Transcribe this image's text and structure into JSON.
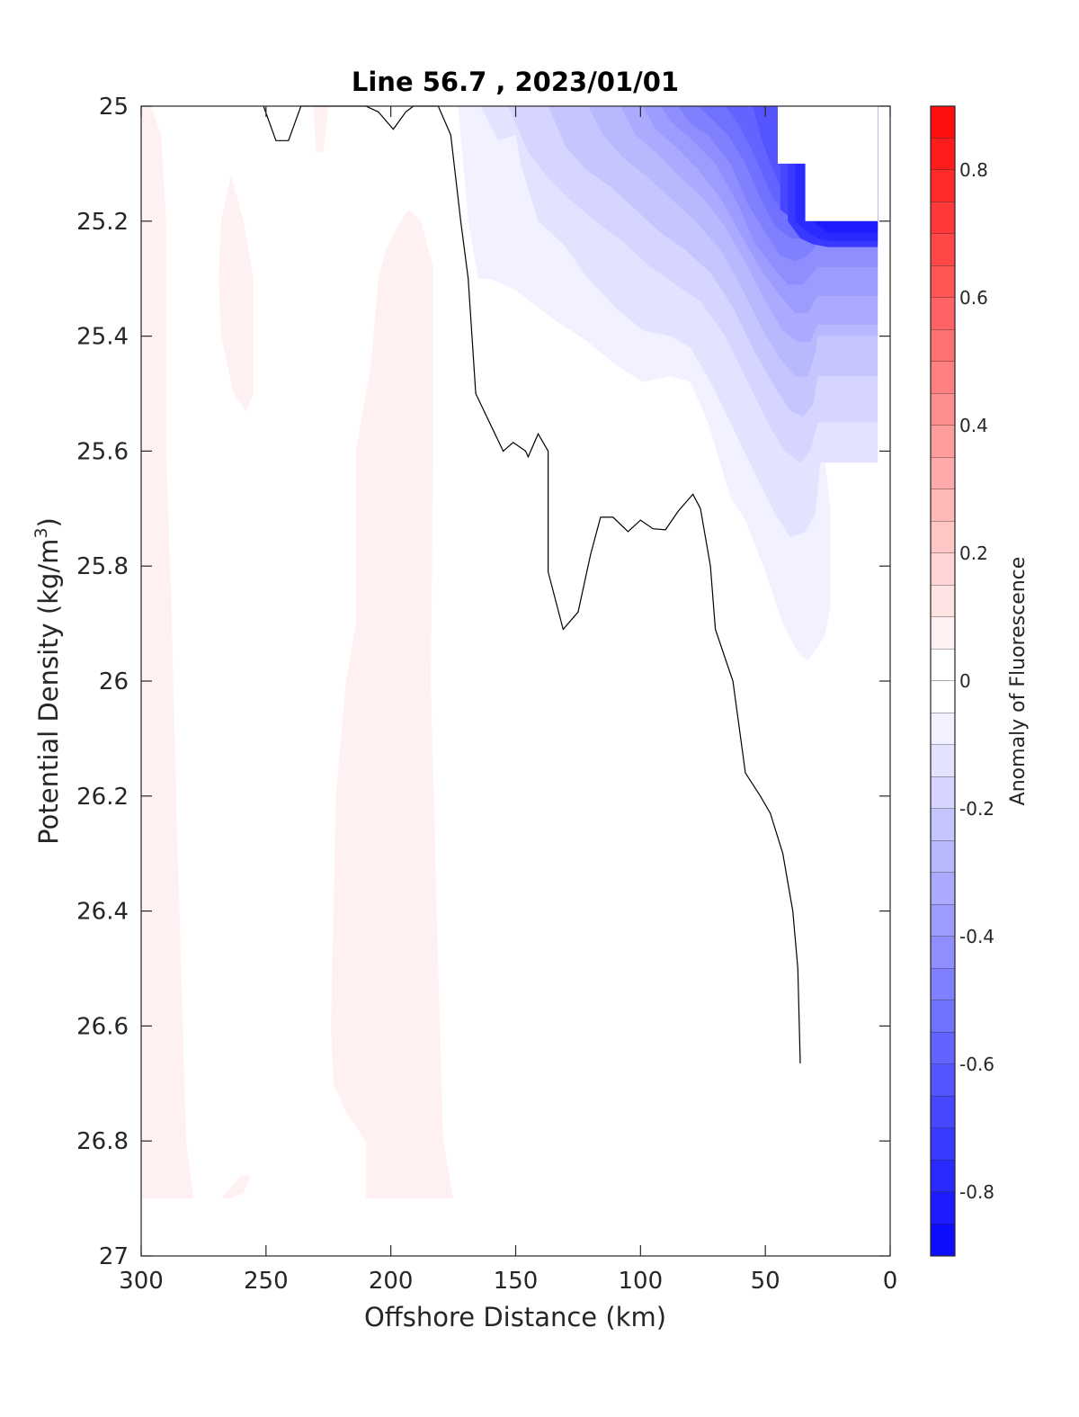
{
  "chart_data": {
    "type": "contour",
    "title": "Line 56.7 , 2023/01/01",
    "xlabel": "Offshore Distance (km)",
    "ylabel_main": "Potential Density (kg/m",
    "ylabel_sup": "3",
    "ylabel_close": ")",
    "xlim": [
      300,
      0
    ],
    "ylim": [
      25,
      27
    ],
    "x_ticks": [
      300,
      250,
      200,
      150,
      100,
      50,
      0
    ],
    "x_tick_labels": [
      "300",
      "250",
      "200",
      "150",
      "100",
      "50",
      "0"
    ],
    "y_ticks": [
      25,
      25.2,
      25.4,
      25.6,
      25.8,
      26,
      26.2,
      26.4,
      26.6,
      26.8,
      27
    ],
    "y_tick_labels": [
      "25",
      "25.2",
      "25.4",
      "25.6",
      "25.8",
      "26",
      "26.2",
      "26.4",
      "26.6",
      "26.8",
      "27"
    ],
    "colorbar": {
      "label": "Anomaly of Fluorescence",
      "range": [
        -0.9,
        0.9
      ],
      "step": 0.05,
      "ticks": [
        0.8,
        0.6,
        0.4,
        0.2,
        0,
        -0.2,
        -0.4,
        -0.6,
        -0.8
      ],
      "tick_labels": [
        "0.8",
        "0.6",
        "0.4",
        "0.2",
        "0",
        "-0.2",
        "-0.4",
        "-0.6",
        "-0.8"
      ],
      "neg_color": "#0000ff",
      "pos_color": "#ff0000"
    },
    "zero_contour": [
      [
        251,
        25.0
      ],
      [
        246,
        25.06
      ],
      [
        241,
        25.06
      ],
      [
        236,
        25.0
      ],
      [
        210,
        25.0
      ],
      [
        205,
        25.01
      ],
      [
        199,
        25.04
      ],
      [
        194,
        25.01
      ],
      [
        191,
        25.0
      ],
      [
        181,
        25.0
      ],
      [
        176,
        25.05
      ],
      [
        172,
        25.2
      ],
      [
        169,
        25.3
      ],
      [
        166,
        25.5
      ],
      [
        155,
        25.6
      ],
      [
        151,
        25.585
      ],
      [
        146,
        25.6
      ],
      [
        145,
        25.61
      ],
      [
        141,
        25.57
      ],
      [
        137,
        25.6
      ],
      [
        137,
        25.81
      ],
      [
        131,
        25.91
      ],
      [
        125,
        25.88
      ],
      [
        120,
        25.78
      ],
      [
        116,
        25.715
      ],
      [
        111,
        25.715
      ],
      [
        105,
        25.74
      ],
      [
        100,
        25.72
      ],
      [
        95,
        25.735
      ],
      [
        90,
        25.737
      ],
      [
        85,
        25.705
      ],
      [
        79,
        25.675
      ],
      [
        76,
        25.7
      ],
      [
        72,
        25.8
      ],
      [
        70,
        25.91
      ],
      [
        63,
        26.0
      ],
      [
        58,
        26.16
      ],
      [
        52,
        26.2
      ],
      [
        48,
        26.23
      ],
      [
        43,
        26.3
      ],
      [
        39,
        26.4
      ],
      [
        37,
        26.5
      ],
      [
        36,
        26.665
      ]
    ],
    "positive_regions": [
      {
        "level": 0.05,
        "points": [
          [
            296,
            25.0
          ],
          [
            292,
            25.05
          ],
          [
            290,
            25.2
          ],
          [
            290,
            25.6
          ],
          [
            288,
            25.85
          ],
          [
            286,
            26.2
          ],
          [
            284,
            26.5
          ],
          [
            282,
            26.8
          ],
          [
            279,
            26.9
          ],
          [
            300,
            26.9
          ],
          [
            300,
            25.0
          ]
        ]
      },
      {
        "level": 0.05,
        "points": [
          [
            264,
            25.12
          ],
          [
            259,
            25.2
          ],
          [
            255,
            25.3
          ],
          [
            255,
            25.5
          ],
          [
            258,
            25.53
          ],
          [
            263,
            25.5
          ],
          [
            268,
            25.4
          ],
          [
            269,
            25.3
          ],
          [
            268,
            25.2
          ]
        ]
      },
      {
        "level": 0.05,
        "points": [
          [
            264,
            26.9
          ],
          [
            259,
            26.89
          ],
          [
            256,
            26.86
          ],
          [
            260,
            26.86
          ],
          [
            268,
            26.9
          ]
        ]
      },
      {
        "level": 0.05,
        "points": [
          [
            231,
            25.0
          ],
          [
            225,
            25.0
          ],
          [
            227,
            25.08
          ],
          [
            230,
            25.08
          ]
        ]
      },
      {
        "level": 0.05,
        "points": [
          [
            193,
            25.18
          ],
          [
            188,
            25.2
          ],
          [
            183,
            25.28
          ],
          [
            183,
            25.6
          ],
          [
            184,
            26.0
          ],
          [
            181,
            26.5
          ],
          [
            179,
            26.8
          ],
          [
            175,
            26.9
          ],
          [
            210,
            26.9
          ],
          [
            210,
            26.8
          ],
          [
            218,
            26.75
          ],
          [
            223,
            26.7
          ],
          [
            224,
            26.6
          ],
          [
            222,
            26.2
          ],
          [
            218,
            26.0
          ],
          [
            214,
            25.9
          ],
          [
            214,
            25.6
          ],
          [
            208,
            25.45
          ],
          [
            205,
            25.3
          ],
          [
            202,
            25.25
          ],
          [
            196,
            25.2
          ]
        ]
      }
    ],
    "negative_levels": [
      {
        "level": -0.05,
        "points": [
          [
            173,
            25.0
          ],
          [
            169,
            25.2
          ],
          [
            165,
            25.3
          ],
          [
            160,
            25.3
          ],
          [
            150,
            25.32
          ],
          [
            135,
            25.37
          ],
          [
            121,
            25.41
          ],
          [
            110,
            25.45
          ],
          [
            99,
            25.48
          ],
          [
            88,
            25.47
          ],
          [
            80,
            25.48
          ],
          [
            73,
            25.55
          ],
          [
            64,
            25.68
          ],
          [
            58,
            25.72
          ],
          [
            50,
            25.81
          ],
          [
            43,
            25.9
          ],
          [
            37,
            25.95
          ],
          [
            33,
            25.965
          ],
          [
            29,
            25.94
          ],
          [
            26,
            25.92
          ],
          [
            24,
            25.87
          ],
          [
            24,
            25.7
          ],
          [
            26,
            25.62
          ]
        ]
      },
      {
        "level": -0.1,
        "points": [
          [
            164,
            25.0
          ],
          [
            157,
            25.06
          ],
          [
            150,
            25.05
          ],
          [
            148,
            25.1
          ],
          [
            141,
            25.2
          ],
          [
            131,
            25.24
          ],
          [
            121,
            25.3
          ],
          [
            110,
            25.35
          ],
          [
            99,
            25.39
          ],
          [
            88,
            25.4
          ],
          [
            80,
            25.42
          ],
          [
            72,
            25.48
          ],
          [
            63,
            25.56
          ],
          [
            54,
            25.64
          ],
          [
            46,
            25.71
          ],
          [
            40,
            25.75
          ],
          [
            34,
            25.74
          ],
          [
            30,
            25.71
          ],
          [
            28,
            25.62
          ]
        ]
      },
      {
        "level": -0.15,
        "points": [
          [
            153,
            25.0
          ],
          [
            145,
            25.08
          ],
          [
            138,
            25.12
          ],
          [
            129,
            25.16
          ],
          [
            118,
            25.2
          ],
          [
            106,
            25.24
          ],
          [
            96,
            25.28
          ],
          [
            86,
            25.31
          ],
          [
            76,
            25.34
          ],
          [
            66,
            25.4
          ],
          [
            57,
            25.48
          ],
          [
            48,
            25.56
          ],
          [
            42,
            25.6
          ],
          [
            36,
            25.62
          ],
          [
            32,
            25.6
          ],
          [
            29,
            25.55
          ]
        ]
      },
      {
        "level": -0.2,
        "points": [
          [
            137,
            25.0
          ],
          [
            130,
            25.07
          ],
          [
            122,
            25.11
          ],
          [
            112,
            25.14
          ],
          [
            102,
            25.18
          ],
          [
            92,
            25.22
          ],
          [
            82,
            25.25
          ],
          [
            72,
            25.29
          ],
          [
            63,
            25.35
          ],
          [
            54,
            25.43
          ],
          [
            46,
            25.49
          ],
          [
            40,
            25.53
          ],
          [
            35,
            25.54
          ],
          [
            31,
            25.52
          ],
          [
            29,
            25.47
          ]
        ]
      },
      {
        "level": -0.25,
        "points": [
          [
            121,
            25.0
          ],
          [
            115,
            25.05
          ],
          [
            107,
            25.09
          ],
          [
            98,
            25.12
          ],
          [
            88,
            25.16
          ],
          [
            78,
            25.2
          ],
          [
            68,
            25.25
          ],
          [
            59,
            25.32
          ],
          [
            51,
            25.39
          ],
          [
            44,
            25.44
          ],
          [
            38,
            25.47
          ],
          [
            33,
            25.47
          ],
          [
            30,
            25.43
          ],
          [
            29,
            25.4
          ]
        ]
      },
      {
        "level": -0.3,
        "points": [
          [
            108,
            25.0
          ],
          [
            102,
            25.05
          ],
          [
            94,
            25.08
          ],
          [
            85,
            25.12
          ],
          [
            75,
            25.16
          ],
          [
            66,
            25.21
          ],
          [
            57,
            25.28
          ],
          [
            50,
            25.34
          ],
          [
            43,
            25.39
          ],
          [
            37,
            25.41
          ],
          [
            32,
            25.41
          ],
          [
            29,
            25.38
          ]
        ]
      },
      {
        "level": -0.35,
        "points": [
          [
            99,
            25.0
          ],
          [
            94,
            25.04
          ],
          [
            86,
            25.07
          ],
          [
            77,
            25.11
          ],
          [
            68,
            25.16
          ],
          [
            59,
            25.23
          ],
          [
            51,
            25.29
          ],
          [
            44,
            25.33
          ],
          [
            38,
            25.36
          ],
          [
            33,
            25.36
          ],
          [
            29,
            25.33
          ]
        ]
      },
      {
        "level": -0.4,
        "points": [
          [
            92,
            25.0
          ],
          [
            87,
            25.03
          ],
          [
            79,
            25.06
          ],
          [
            70,
            25.1
          ],
          [
            61,
            25.17
          ],
          [
            54,
            25.24
          ],
          [
            47,
            25.28
          ],
          [
            41,
            25.31
          ],
          [
            35,
            25.31
          ],
          [
            29,
            25.28
          ]
        ]
      },
      {
        "level": -0.45,
        "points": [
          [
            85,
            25.0
          ],
          [
            80,
            25.03
          ],
          [
            73,
            25.05
          ],
          [
            64,
            25.1
          ],
          [
            57,
            25.17
          ],
          [
            50,
            25.22
          ],
          [
            44,
            25.26
          ],
          [
            38,
            25.27
          ],
          [
            33,
            25.26
          ],
          [
            29,
            25.24
          ]
        ]
      },
      {
        "level": -0.5,
        "points": [
          [
            77,
            25.0
          ],
          [
            72,
            25.02
          ],
          [
            65,
            25.05
          ],
          [
            58,
            25.1
          ],
          [
            52,
            25.16
          ],
          [
            46,
            25.21
          ],
          [
            40,
            25.23
          ],
          [
            35,
            25.23
          ],
          [
            31,
            25.21
          ]
        ]
      },
      {
        "level": -0.55,
        "points": [
          [
            66,
            25.0
          ],
          [
            61,
            25.03
          ],
          [
            56,
            25.07
          ],
          [
            51,
            25.12
          ],
          [
            47,
            25.16
          ],
          [
            41,
            25.19
          ],
          [
            36,
            25.2
          ],
          [
            33,
            25.2
          ]
        ]
      },
      {
        "level": -0.6,
        "points": [
          [
            55,
            25.0
          ],
          [
            52,
            25.05
          ],
          [
            48,
            25.1
          ],
          [
            43,
            25.15
          ],
          [
            38,
            25.17
          ],
          [
            34,
            25.17
          ],
          [
            31,
            25.16
          ]
        ]
      },
      {
        "level": -0.65,
        "points": [
          [
            44,
            25.18
          ],
          [
            38,
            25.2
          ],
          [
            33,
            25.21
          ],
          [
            27,
            25.215
          ]
        ]
      },
      {
        "level": -0.7,
        "points": [
          [
            41,
            25.2
          ],
          [
            36,
            25.23
          ],
          [
            31,
            25.24
          ],
          [
            25,
            25.245
          ]
        ]
      },
      {
        "level": -0.75,
        "points": [
          [
            38,
            25.2
          ],
          [
            33,
            25.22
          ],
          [
            29,
            25.23
          ],
          [
            24,
            25.235
          ]
        ]
      },
      {
        "level": -0.8,
        "points": [
          [
            31,
            25.2
          ],
          [
            28,
            25.21
          ],
          [
            25,
            25.22
          ]
        ]
      }
    ],
    "data_gap_region": [
      [
        45,
        25.0
      ],
      [
        45,
        25.1
      ],
      [
        34,
        25.1
      ],
      [
        34,
        25.2
      ],
      [
        5,
        25.2
      ],
      [
        5,
        25.0
      ]
    ],
    "data_extent": {
      "x_min": 5,
      "x_max": 300,
      "y_max": 26.9
    }
  }
}
